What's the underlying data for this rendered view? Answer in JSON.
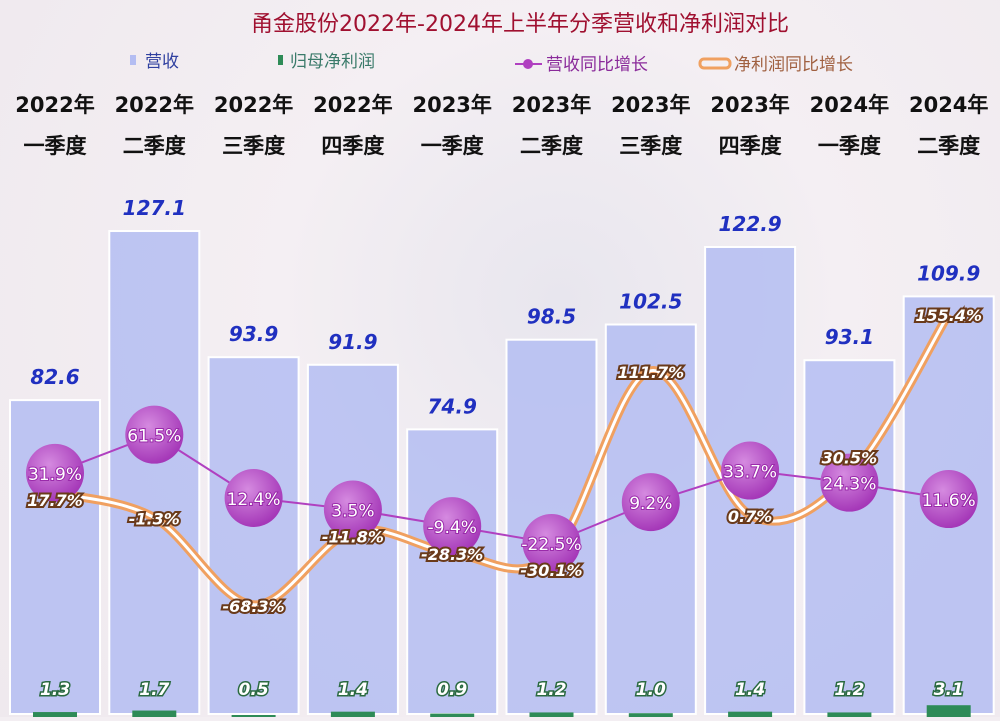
{
  "chart_data": {
    "type": "bar",
    "title": "甬金股份2022年-2024年上半年分季营收和净利润对比",
    "categories": [
      [
        "2022年",
        "一季度"
      ],
      [
        "2022年",
        "二季度"
      ],
      [
        "2022年",
        "三季度"
      ],
      [
        "2022年",
        "四季度"
      ],
      [
        "2023年",
        "一季度"
      ],
      [
        "2023年",
        "二季度"
      ],
      [
        "2023年",
        "三季度"
      ],
      [
        "2023年",
        "四季度"
      ],
      [
        "2024年",
        "一季度"
      ],
      [
        "2024年",
        "二季度"
      ]
    ],
    "series": [
      {
        "name": "营收",
        "kind": "bar",
        "color": "#b4bdf2",
        "values": [
          82.6,
          127.1,
          93.9,
          91.9,
          74.9,
          98.5,
          102.5,
          122.9,
          93.1,
          109.9
        ]
      },
      {
        "name": "归母净利润",
        "kind": "bar",
        "color": "#2e8b57",
        "values": [
          1.3,
          1.7,
          0.5,
          1.4,
          0.9,
          1.2,
          1.0,
          1.4,
          1.2,
          3.1
        ]
      },
      {
        "name": "营收同比增长",
        "kind": "line",
        "color": "#b040c0",
        "unit": "%",
        "values": [
          31.9,
          61.5,
          12.4,
          3.5,
          -9.4,
          -22.5,
          9.2,
          33.7,
          24.3,
          11.6
        ]
      },
      {
        "name": "净利润同比增长",
        "kind": "line",
        "color": "#f0a060",
        "unit": "%",
        "values": [
          17.7,
          -1.3,
          -68.3,
          -11.8,
          -28.3,
          -30.1,
          111.7,
          0.7,
          30.5,
          155.4
        ]
      }
    ],
    "legend": "top"
  }
}
